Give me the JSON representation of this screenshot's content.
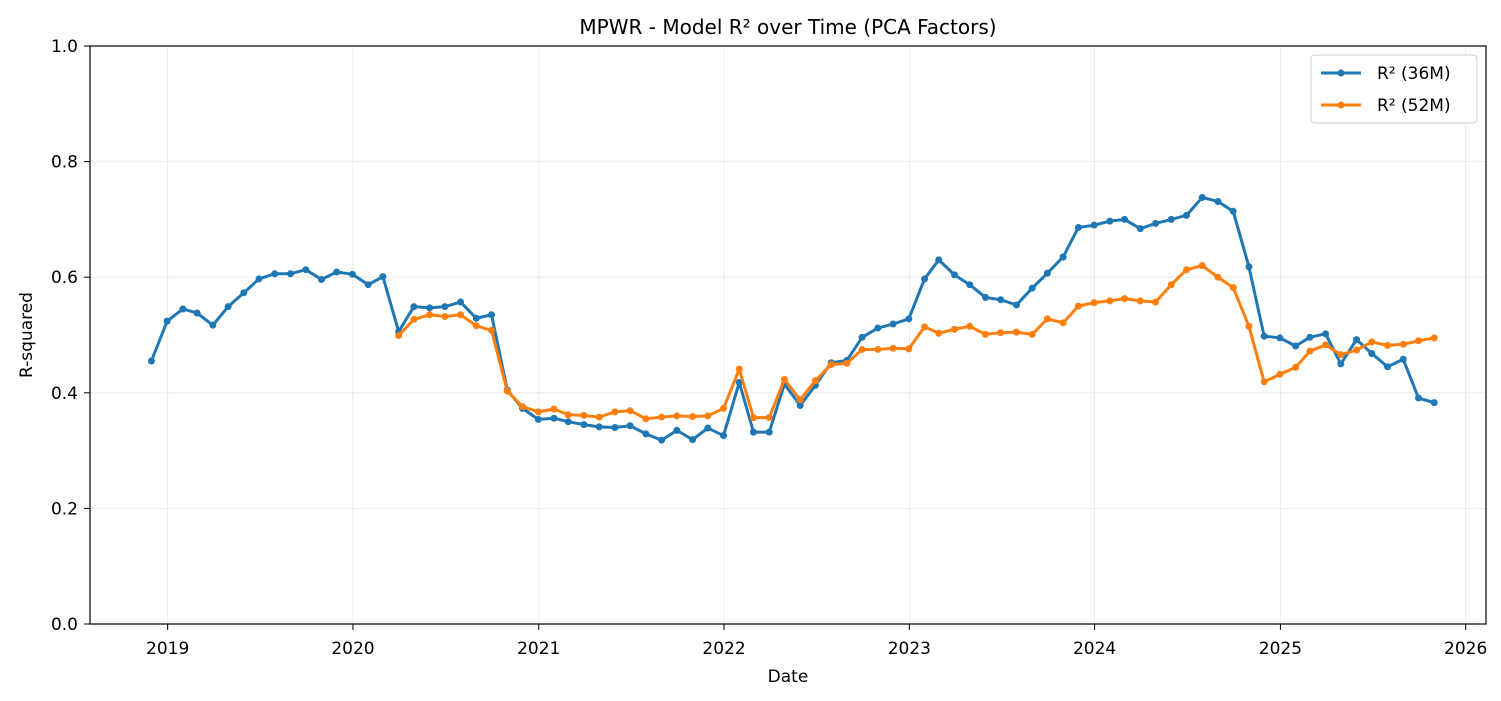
{
  "chart_data": {
    "type": "line",
    "title": "MPWR - Model R² over Time (PCA Factors)",
    "xlabel": "Date",
    "ylabel": "R-squared",
    "ylim": [
      0,
      1.0
    ],
    "xlim": [
      "2018-08-01",
      "2026-02-10"
    ],
    "grid": true,
    "legend_position": "top-right",
    "x_ticks": [
      "2019",
      "2020",
      "2021",
      "2022",
      "2023",
      "2024",
      "2025",
      "2026"
    ],
    "y_ticks": [
      "0.0",
      "0.2",
      "0.4",
      "0.6",
      "0.8",
      "1.0"
    ],
    "series": [
      {
        "name": "R² (36M)",
        "color": "#1f77b4",
        "x": [
          "2018-11-30",
          "2018-12-31",
          "2019-01-31",
          "2019-02-28",
          "2019-03-31",
          "2019-04-30",
          "2019-05-31",
          "2019-06-30",
          "2019-07-31",
          "2019-08-31",
          "2019-09-30",
          "2019-10-31",
          "2019-11-30",
          "2019-12-31",
          "2020-01-31",
          "2020-02-29",
          "2020-03-31",
          "2020-04-30",
          "2020-05-31",
          "2020-06-30",
          "2020-07-31",
          "2020-08-31",
          "2020-09-30",
          "2020-10-31",
          "2020-11-30",
          "2020-12-31",
          "2021-01-31",
          "2021-02-28",
          "2021-03-31",
          "2021-04-30",
          "2021-05-31",
          "2021-06-30",
          "2021-07-31",
          "2021-08-31",
          "2021-09-30",
          "2021-10-31",
          "2021-11-30",
          "2021-12-31",
          "2022-01-31",
          "2022-02-28",
          "2022-03-31",
          "2022-04-30",
          "2022-05-31",
          "2022-06-30",
          "2022-07-31",
          "2022-08-31",
          "2022-09-30",
          "2022-10-31",
          "2022-11-30",
          "2022-12-31",
          "2023-01-31",
          "2023-02-28",
          "2023-03-31",
          "2023-04-30",
          "2023-05-31",
          "2023-06-30",
          "2023-07-31",
          "2023-08-31",
          "2023-09-30",
          "2023-10-31",
          "2023-11-30",
          "2023-12-31",
          "2024-01-31",
          "2024-02-29",
          "2024-03-31",
          "2024-04-30",
          "2024-05-31",
          "2024-06-30",
          "2024-07-31",
          "2024-08-31",
          "2024-09-30",
          "2024-10-31",
          "2024-11-30",
          "2024-12-31",
          "2025-01-31",
          "2025-02-28",
          "2025-03-31",
          "2025-04-30",
          "2025-05-31",
          "2025-06-30",
          "2025-07-31",
          "2025-08-31",
          "2025-09-30",
          "2025-10-31"
        ],
        "values": [
          0.455,
          0.524,
          0.545,
          0.538,
          0.517,
          0.549,
          0.573,
          0.597,
          0.606,
          0.606,
          0.613,
          0.596,
          0.609,
          0.605,
          0.587,
          0.601,
          0.506,
          0.549,
          0.547,
          0.549,
          0.557,
          0.529,
          0.535,
          0.405,
          0.373,
          0.354,
          0.356,
          0.35,
          0.345,
          0.341,
          0.34,
          0.343,
          0.329,
          0.318,
          0.335,
          0.319,
          0.339,
          0.326,
          0.418,
          0.332,
          0.332,
          0.415,
          0.378,
          0.413,
          0.452,
          0.456,
          0.496,
          0.512,
          0.519,
          0.528,
          0.597,
          0.63,
          0.604,
          0.587,
          0.565,
          0.561,
          0.552,
          0.581,
          0.607,
          0.635,
          0.686,
          0.69,
          0.697,
          0.7,
          0.684,
          0.693,
          0.7,
          0.707,
          0.738,
          0.731,
          0.714,
          0.618,
          0.498,
          0.495,
          0.481,
          0.496,
          0.502,
          0.45,
          0.492,
          0.468,
          0.445,
          0.458,
          0.391,
          0.383
        ]
      },
      {
        "name": "R² (52M)",
        "color": "#ff7f0e",
        "x": [
          "2020-03-31",
          "2020-04-30",
          "2020-05-31",
          "2020-06-30",
          "2020-07-31",
          "2020-08-31",
          "2020-09-30",
          "2020-10-31",
          "2020-11-30",
          "2020-12-31",
          "2021-01-31",
          "2021-02-28",
          "2021-03-31",
          "2021-04-30",
          "2021-05-31",
          "2021-06-30",
          "2021-07-31",
          "2021-08-31",
          "2021-09-30",
          "2021-10-31",
          "2021-11-30",
          "2021-12-31",
          "2022-01-31",
          "2022-02-28",
          "2022-03-31",
          "2022-04-30",
          "2022-05-31",
          "2022-06-30",
          "2022-07-31",
          "2022-08-31",
          "2022-09-30",
          "2022-10-31",
          "2022-11-30",
          "2022-12-31",
          "2023-01-31",
          "2023-02-28",
          "2023-03-31",
          "2023-04-30",
          "2023-05-31",
          "2023-06-30",
          "2023-07-31",
          "2023-08-31",
          "2023-09-30",
          "2023-10-31",
          "2023-11-30",
          "2023-12-31",
          "2024-01-31",
          "2024-02-29",
          "2024-03-31",
          "2024-04-30",
          "2024-05-31",
          "2024-06-30",
          "2024-07-31",
          "2024-08-31",
          "2024-09-30",
          "2024-10-31",
          "2024-11-30",
          "2024-12-31",
          "2025-01-31",
          "2025-02-28",
          "2025-03-31",
          "2025-04-30",
          "2025-05-31",
          "2025-06-30",
          "2025-07-31",
          "2025-08-31",
          "2025-09-30",
          "2025-10-31"
        ],
        "values": [
          0.499,
          0.527,
          0.535,
          0.532,
          0.535,
          0.516,
          0.508,
          0.403,
          0.376,
          0.367,
          0.372,
          0.362,
          0.361,
          0.358,
          0.367,
          0.369,
          0.355,
          0.358,
          0.36,
          0.359,
          0.36,
          0.373,
          0.441,
          0.357,
          0.357,
          0.423,
          0.388,
          0.421,
          0.449,
          0.451,
          0.475,
          0.475,
          0.477,
          0.476,
          0.514,
          0.503,
          0.51,
          0.515,
          0.501,
          0.504,
          0.505,
          0.501,
          0.528,
          0.521,
          0.55,
          0.556,
          0.559,
          0.563,
          0.559,
          0.557,
          0.587,
          0.613,
          0.62,
          0.6,
          0.582,
          0.515,
          0.419,
          0.432,
          0.444,
          0.472,
          0.483,
          0.466,
          0.474,
          0.488,
          0.482,
          0.484,
          0.49,
          0.495
        ]
      }
    ]
  }
}
